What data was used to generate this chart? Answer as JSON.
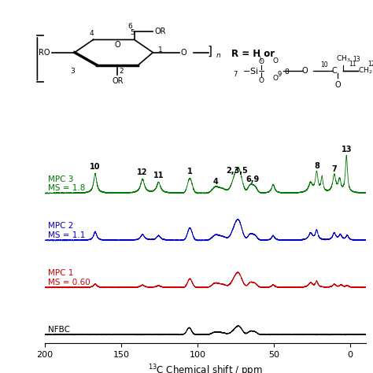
{
  "xlabel": "$^{13}$C Chemical shift / ppm",
  "xlim": [
    200,
    -10
  ],
  "colors": {
    "NFBC": "#000000",
    "MPC1": "#cc0000",
    "MPC2": "#0000cc",
    "MPC3": "#007700"
  },
  "labels": {
    "NFBC": "NFBC",
    "MPC1": "MPC 1\nMS = 0.60",
    "MPC2": "MPC 2\nMS = 1.1",
    "MPC3": "MPC 3\nMS = 1.8"
  },
  "offsets": [
    0.0,
    0.22,
    0.44,
    0.66
  ],
  "background_color": "#ffffff"
}
